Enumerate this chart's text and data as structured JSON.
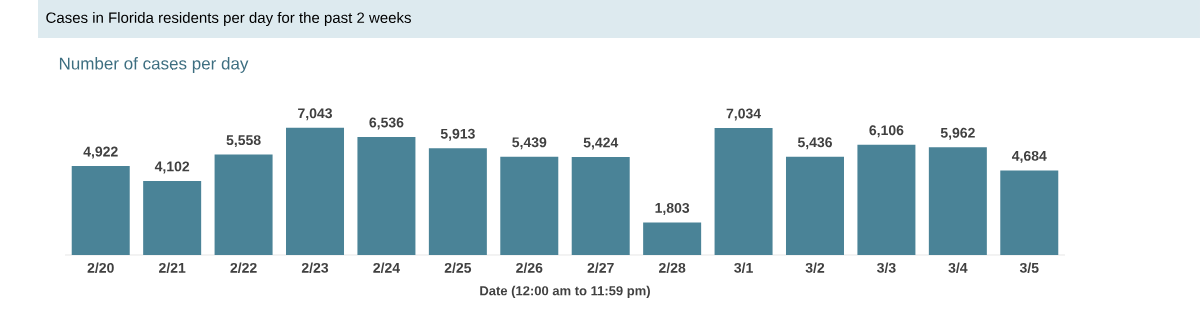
{
  "chart_data": {
    "type": "bar",
    "title": "Cases in Florida residents per day for the past 2 weeks",
    "subtitle": "Number of cases per day",
    "xlabel": "Date (12:00 am to 11:59 pm)",
    "categories": [
      "2/20",
      "2/21",
      "2/22",
      "2/23",
      "2/24",
      "2/25",
      "2/26",
      "2/27",
      "2/28",
      "3/1",
      "3/2",
      "3/3",
      "3/4",
      "3/5"
    ],
    "values": [
      4922,
      4102,
      5558,
      7043,
      6536,
      5913,
      5439,
      5424,
      1803,
      7034,
      5436,
      6106,
      5962,
      4684
    ],
    "value_labels": [
      "4,922",
      "4,102",
      "5,558",
      "7,043",
      "6,536",
      "5,913",
      "5,439",
      "5,424",
      "1,803",
      "7,034",
      "5,436",
      "6,106",
      "5,962",
      "4,684"
    ],
    "color": "#4a8397"
  }
}
